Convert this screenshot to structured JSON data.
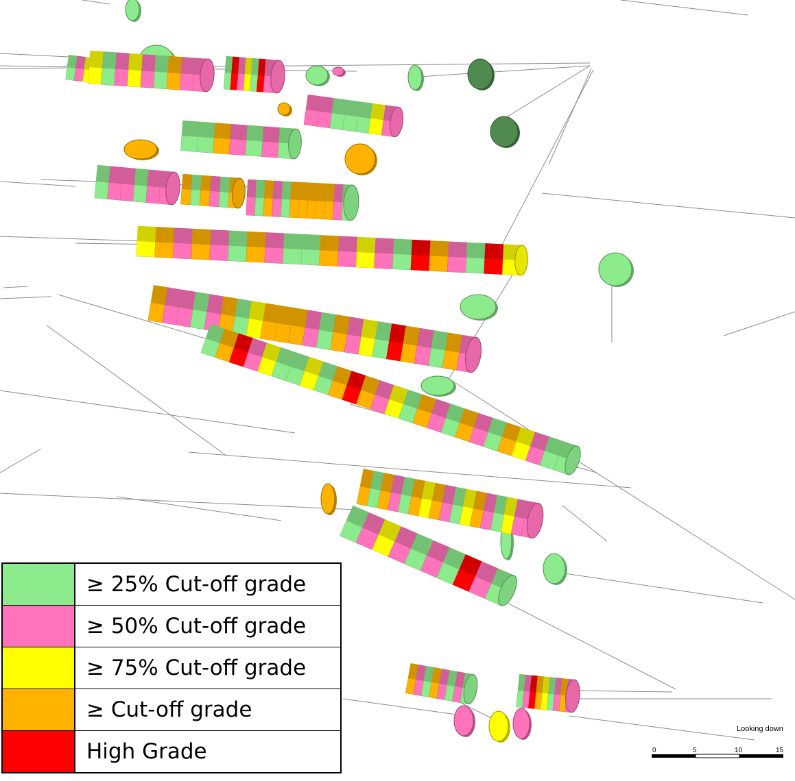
{
  "legend": {
    "items": [
      {
        "label": "≥ 25% Cut-off grade",
        "color": "#8ceb8c"
      },
      {
        "label": "≥ 50% Cut-off grade",
        "color": "#ff73bb"
      },
      {
        "label": "≥ 75% Cut-off grade",
        "color": "#ffff00"
      },
      {
        "label": "≥ Cut-off grade",
        "color": "#ffb300"
      },
      {
        "label": "High Grade",
        "color": "#ff0000"
      }
    ]
  },
  "view_label": "Looking down",
  "scale_bar": {
    "ticks": [
      "0",
      "5",
      "10",
      "15"
    ]
  },
  "palette": {
    "green": "#8ceb8c",
    "pink": "#ff73bb",
    "yellow": "#ffff00",
    "orange": "#ffb300",
    "red": "#ff0000",
    "dark_green": "#4f8a4f",
    "trace_line": "#8a8a8a"
  },
  "drillholes": [
    {
      "id": "r1a",
      "colors": [
        "green",
        "pink",
        "yellow",
        "pink",
        "green"
      ]
    },
    {
      "id": "r1b",
      "colors": [
        "yellow",
        "green",
        "pink",
        "yellow",
        "pink",
        "green",
        "orange",
        "pink",
        "pink"
      ]
    },
    {
      "id": "r1c",
      "colors": [
        "green",
        "red",
        "pink",
        "yellow",
        "green",
        "red",
        "pink",
        "pink"
      ]
    },
    {
      "id": "r2a",
      "colors": [
        "green",
        "green",
        "orange",
        "pink",
        "green",
        "pink",
        "green"
      ]
    },
    {
      "id": "r2b",
      "colors": [
        "pink",
        "pink",
        "green",
        "green",
        "green",
        "yellow",
        "pink"
      ]
    },
    {
      "id": "r3a",
      "colors": [
        "green",
        "pink",
        "pink",
        "green",
        "pink",
        "pink"
      ]
    },
    {
      "id": "r3b",
      "colors": [
        "orange",
        "green",
        "orange",
        "pink",
        "green",
        "orange"
      ]
    },
    {
      "id": "r3c",
      "colors": [
        "pink",
        "green",
        "orange",
        "pink",
        "green",
        "orange",
        "orange",
        "orange",
        "orange",
        "orange",
        "pink",
        "green"
      ]
    },
    {
      "id": "r4a",
      "colors": [
        "yellow",
        "orange",
        "pink",
        "orange",
        "pink",
        "green",
        "orange",
        "pink",
        "green",
        "green",
        "orange",
        "pink",
        "yellow",
        "pink",
        "green",
        "red",
        "orange",
        "pink",
        "green",
        "red",
        "yellow"
      ]
    },
    {
      "id": "r5a",
      "colors": [
        "orange",
        "pink",
        "pink",
        "green",
        "pink",
        "orange",
        "green",
        "yellow",
        "orange",
        "orange",
        "orange",
        "pink",
        "green",
        "orange",
        "pink",
        "yellow",
        "green",
        "red",
        "orange",
        "pink",
        "green",
        "orange",
        "pink"
      ]
    },
    {
      "id": "r6a",
      "colors": [
        "green",
        "orange",
        "red",
        "pink",
        "yellow",
        "green",
        "green",
        "yellow",
        "green",
        "orange",
        "red",
        "orange",
        "pink",
        "yellow",
        "green",
        "orange",
        "pink",
        "green",
        "orange",
        "pink",
        "green",
        "orange",
        "yellow",
        "pink",
        "green",
        "green"
      ]
    },
    {
      "id": "r7a",
      "colors": [
        "orange",
        "green",
        "orange",
        "pink",
        "green",
        "orange",
        "yellow",
        "orange",
        "pink",
        "green",
        "yellow",
        "orange",
        "pink",
        "green",
        "yellow",
        "pink",
        "pink"
      ]
    },
    {
      "id": "r8a",
      "colors": [
        "green",
        "pink",
        "yellow",
        "pink",
        "green",
        "pink",
        "green",
        "red",
        "pink",
        "green"
      ]
    },
    {
      "id": "r9a",
      "colors": [
        "orange",
        "pink",
        "green",
        "orange",
        "pink",
        "green",
        "pink",
        "green"
      ]
    },
    {
      "id": "r9b",
      "colors": [
        "green",
        "pink",
        "red",
        "orange",
        "yellow",
        "green",
        "pink",
        "orange",
        "pink"
      ]
    }
  ]
}
